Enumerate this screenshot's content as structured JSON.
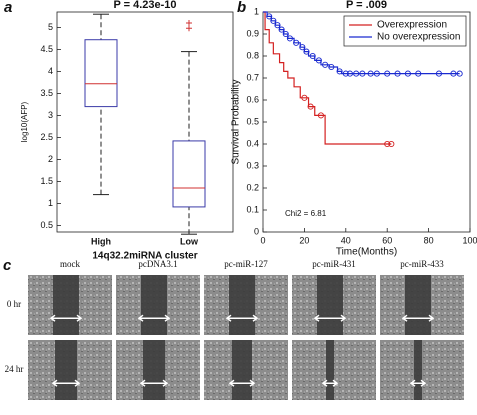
{
  "chart_data": [
    {
      "type": "box",
      "panel": "a",
      "title": "P = 4.23e-10",
      "y_label": "log10(AFP)",
      "x_label": "14q32.2miRNA cluster",
      "categories": [
        "High",
        "Low"
      ],
      "boxes": [
        {
          "min": 1.2,
          "q1": 3.2,
          "median": 3.72,
          "q3": 4.72,
          "max": 5.3,
          "outliers": []
        },
        {
          "min": 0.3,
          "q1": 0.92,
          "median": 1.35,
          "q3": 2.42,
          "max": 4.45,
          "outliers": [
            5.1,
            4.98
          ]
        }
      ],
      "box_color": "#3a3aa8",
      "median_color": "#d03030",
      "outlier_color": "#d03030",
      "ylim": [
        0.35,
        5.35
      ],
      "yticks": [
        0.5,
        1,
        1.5,
        2,
        2.5,
        3,
        3.5,
        4,
        4.5,
        5
      ]
    },
    {
      "type": "step",
      "panel": "b",
      "title": "P = .009",
      "y_label": "Survival Probability",
      "x_label": "Time(Months)",
      "annotation": "Chi2 = 6.81",
      "series": [
        {
          "name": "Overexpression",
          "color": "#d42020",
          "x": [
            0,
            1,
            3,
            5,
            8,
            10,
            12,
            15,
            18,
            22,
            25,
            30,
            62
          ],
          "values": [
            1,
            0.92,
            0.86,
            0.81,
            0.77,
            0.73,
            0.7,
            0.66,
            0.61,
            0.57,
            0.53,
            0.4,
            0.4
          ],
          "censor_x": [
            20,
            23,
            28,
            60,
            62
          ],
          "censor_y": [
            0.61,
            0.57,
            0.53,
            0.4,
            0.4
          ]
        },
        {
          "name": "No overexpression",
          "color": "#1a2ad0",
          "x": [
            0,
            2,
            4,
            6,
            8,
            10,
            12,
            15,
            18,
            20,
            22,
            25,
            28,
            32,
            36,
            38,
            95
          ],
          "values": [
            1,
            0.98,
            0.96,
            0.94,
            0.92,
            0.9,
            0.88,
            0.86,
            0.84,
            0.82,
            0.8,
            0.78,
            0.76,
            0.75,
            0.73,
            0.72,
            0.72
          ],
          "censor_x": [
            3,
            5,
            7,
            9,
            11,
            13,
            16,
            19,
            21,
            24,
            27,
            30,
            33,
            37,
            40,
            42,
            45,
            48,
            52,
            55,
            60,
            65,
            70,
            75,
            85,
            92,
            95
          ],
          "censor_y": [
            0.98,
            0.96,
            0.94,
            0.92,
            0.9,
            0.88,
            0.86,
            0.84,
            0.82,
            0.8,
            0.78,
            0.76,
            0.75,
            0.73,
            0.72,
            0.72,
            0.72,
            0.72,
            0.72,
            0.72,
            0.72,
            0.72,
            0.72,
            0.72,
            0.72,
            0.72,
            0.72
          ]
        }
      ],
      "legend": "upper right",
      "xlim": [
        0,
        100
      ],
      "xticks": [
        0,
        20,
        40,
        60,
        80,
        100
      ],
      "ylim": [
        0,
        1
      ],
      "yticks": [
        0,
        0.1,
        0.2,
        0.3,
        0.4,
        0.5,
        0.6,
        0.7,
        0.8,
        0.9,
        1
      ]
    }
  ],
  "figure_c": {
    "label": "c",
    "columns": [
      "mock",
      "pcDNA3.1",
      "pc-miR-127",
      "pc-miR-431",
      "pc-miR-433"
    ],
    "rows": [
      "0 hr",
      "24 hr"
    ]
  }
}
